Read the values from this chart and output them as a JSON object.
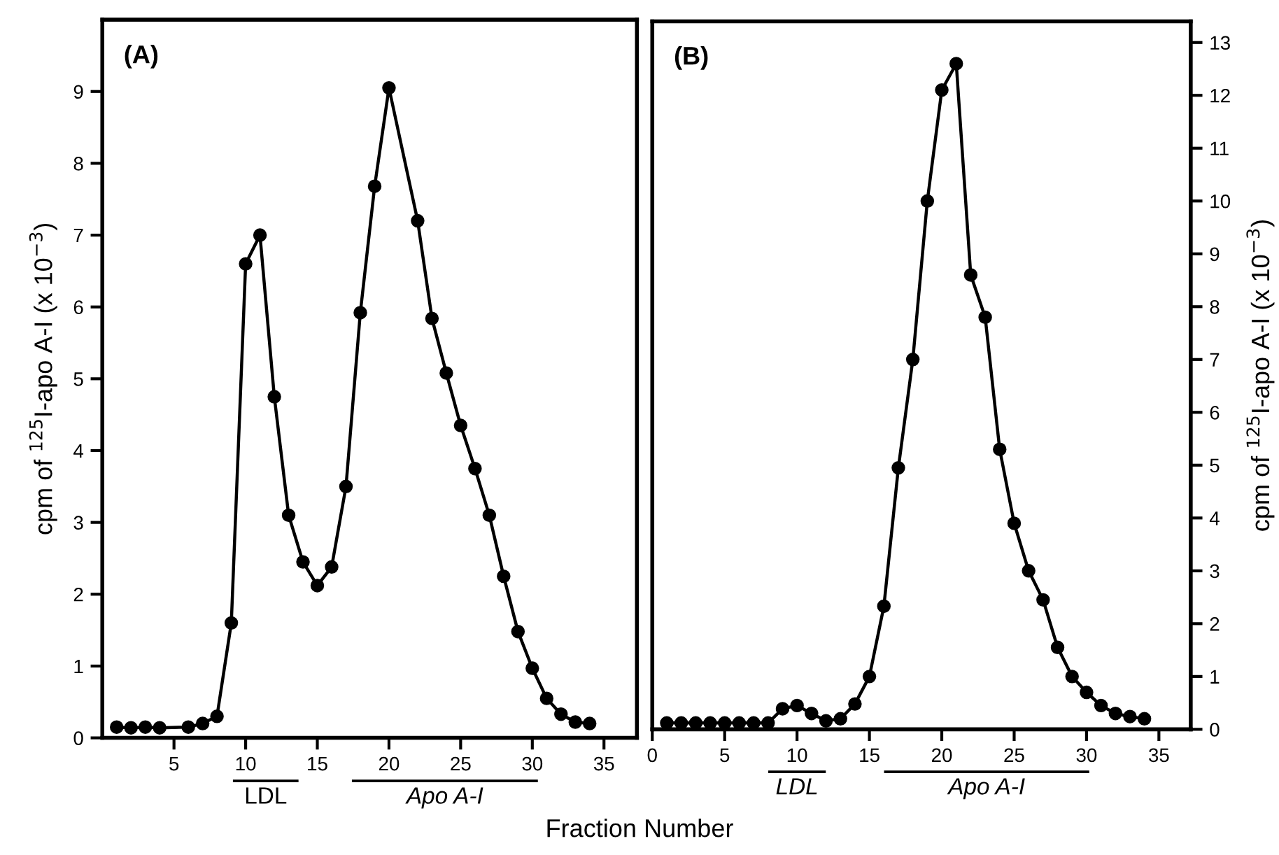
{
  "chart_data": [
    {
      "type": "line",
      "title": "(A)",
      "xlabel": "Fraction Number",
      "ylabel": "cpm of $^{125}$I-apo A-I (x 10$^{−3}$)",
      "series": [
        {
          "color": "#000000",
          "x": [
            1,
            2,
            3,
            4,
            6,
            7,
            8,
            9,
            10,
            11,
            12,
            13,
            14,
            15,
            16,
            17,
            18,
            19,
            20,
            22,
            23,
            24,
            25,
            26,
            27,
            28,
            29,
            30,
            31,
            32,
            33,
            34
          ],
          "values": [
            0.15,
            0.14,
            0.15,
            0.14,
            0.15,
            0.2,
            0.3,
            1.6,
            6.6,
            7.0,
            4.75,
            3.1,
            2.45,
            2.12,
            2.38,
            3.5,
            5.92,
            7.68,
            9.05,
            7.2,
            5.84,
            5.08,
            4.35,
            3.75,
            3.1,
            2.25,
            1.48,
            0.97,
            0.55,
            0.33,
            0.22,
            0.2
          ]
        }
      ],
      "xlim": [
        0,
        37.3
      ],
      "ylim": [
        0,
        10
      ],
      "xticks": [
        5,
        10,
        15,
        20,
        25,
        30,
        35
      ],
      "yticks": [
        0,
        1,
        2,
        3,
        4,
        5,
        6,
        7,
        8,
        9
      ],
      "marker": "circle",
      "line_style": "solid",
      "annotations": [
        "LDL",
        "Apo A-I"
      ]
    },
    {
      "type": "line",
      "title": "(B)",
      "ylabel": "cpm of $^{125}$I-apo A-I (x 10$^{−3}$)",
      "series": [
        {
          "color": "#000000",
          "x": [
            1,
            2,
            3,
            4,
            5,
            6,
            7,
            8,
            9,
            10,
            11,
            12,
            13,
            14,
            15,
            16,
            17,
            18,
            19,
            20,
            21,
            22,
            23,
            24,
            25,
            26,
            27,
            28,
            29,
            30,
            31,
            32,
            33,
            34
          ],
          "values": [
            0.12,
            0.12,
            0.12,
            0.12,
            0.12,
            0.12,
            0.12,
            0.12,
            0.39,
            0.45,
            0.3,
            0.16,
            0.2,
            0.48,
            1.0,
            2.33,
            4.95,
            7.0,
            10.0,
            12.1,
            12.6,
            8.6,
            7.8,
            5.3,
            3.9,
            3.0,
            2.45,
            1.55,
            1.0,
            0.7,
            0.45,
            0.3,
            0.24,
            0.2
          ]
        }
      ],
      "xlim": [
        0,
        37.2
      ],
      "ylim": [
        0,
        13.4
      ],
      "xticks": [
        0,
        5,
        10,
        15,
        20,
        25,
        30,
        35
      ],
      "yticks": [
        0,
        1,
        2,
        3,
        4,
        5,
        6,
        7,
        8,
        9,
        10,
        11,
        12,
        13
      ],
      "marker": "circle",
      "line_style": "solid",
      "annotations": [
        "LDL",
        "Apo A-I"
      ]
    }
  ]
}
